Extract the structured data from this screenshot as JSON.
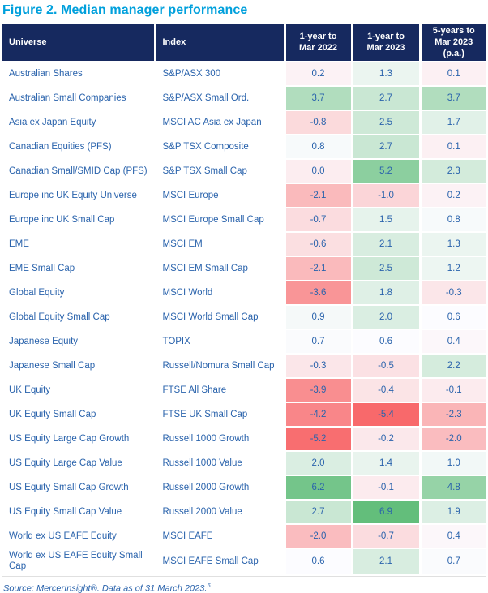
{
  "title": "Figure 2. Median manager performance",
  "source_note": {
    "text": "Source: MercerInsight®. Data as of 31 March 2023.",
    "superscript": "6"
  },
  "colors": {
    "title": "#00a0dc",
    "header_bg": "#16295f",
    "header_text": "#ffffff",
    "body_text": "#2a63ac",
    "negative_extreme": "#f8696b",
    "neutral": "#fcfcff",
    "positive_extreme": "#63be7b"
  },
  "chart_data": {
    "type": "table",
    "title": "Figure 2. Median manager performance",
    "columns": [
      "Universe",
      "Index",
      "1-year to\nMar 2022",
      "1-year to\nMar 2023",
      "5-years to\nMar 2023\n(p.a.)"
    ],
    "value_columns": [
      "1-year to Mar 2022",
      "1-year to Mar 2023",
      "5-years to Mar 2023 (p.a.)"
    ],
    "color_scale": {
      "min": {
        "value": -5.4,
        "color": "#f8696b"
      },
      "mid": {
        "value": 0.6,
        "color": "#fcfcff"
      },
      "max": {
        "value": 6.9,
        "color": "#63be7b"
      }
    },
    "rows": [
      {
        "universe": "Australian Shares",
        "index": "S&P/ASX 300",
        "values": [
          "0.2",
          "1.3",
          "0.1"
        ]
      },
      {
        "universe": "Australian Small Companies",
        "index": "S&P/ASX Small Ord.",
        "values": [
          "3.7",
          "2.7",
          "3.7"
        ]
      },
      {
        "universe": "Asia ex Japan Equity",
        "index": "MSCI AC Asia ex Japan",
        "values": [
          "-0.8",
          "2.5",
          "1.7"
        ]
      },
      {
        "universe": "Canadian Equities (PFS)",
        "index": "S&P TSX Composite",
        "values": [
          "0.8",
          "2.7",
          "0.1"
        ]
      },
      {
        "universe": "Canadian Small/SMID Cap (PFS)",
        "index": "S&P TSX Small Cap",
        "values": [
          "0.0",
          "5.2",
          "2.3"
        ]
      },
      {
        "universe": "Europe inc UK Equity Universe",
        "index": "MSCI Europe",
        "values": [
          "-2.1",
          "-1.0",
          "0.2"
        ]
      },
      {
        "universe": "Europe inc UK Small Cap",
        "index": "MSCI Europe Small Cap",
        "values": [
          "-0.7",
          "1.5",
          "0.8"
        ]
      },
      {
        "universe": "EME",
        "index": "MSCI EM",
        "values": [
          "-0.6",
          "2.1",
          "1.3"
        ]
      },
      {
        "universe": "EME Small Cap",
        "index": "MSCI EM Small Cap",
        "values": [
          "-2.1",
          "2.5",
          "1.2"
        ]
      },
      {
        "universe": "Global Equity",
        "index": "MSCI World",
        "values": [
          "-3.6",
          "1.8",
          "-0.3"
        ]
      },
      {
        "universe": "Global Equity Small Cap",
        "index": "MSCI World Small Cap",
        "values": [
          "0.9",
          "2.0",
          "0.6"
        ]
      },
      {
        "universe": "Japanese Equity",
        "index": "TOPIX",
        "values": [
          "0.7",
          "0.6",
          "0.4"
        ]
      },
      {
        "universe": "Japanese Small Cap",
        "index": "Russell/Nomura Small Cap",
        "values": [
          "-0.3",
          "-0.5",
          "2.2"
        ]
      },
      {
        "universe": "UK Equity",
        "index": "FTSE All Share",
        "values": [
          "-3.9",
          "-0.4",
          "-0.1"
        ]
      },
      {
        "universe": "UK Equity Small Cap",
        "index": "FTSE UK Small Cap",
        "values": [
          "-4.2",
          "-5.4",
          "-2.3"
        ]
      },
      {
        "universe": "US Equity Large Cap Growth",
        "index": "Russell 1000 Growth",
        "values": [
          "-5.2",
          "-0.2",
          "-2.0"
        ]
      },
      {
        "universe": "US Equity Large Cap Value",
        "index": "Russell 1000 Value",
        "values": [
          "2.0",
          "1.4",
          "1.0"
        ]
      },
      {
        "universe": "US Equity Small Cap Growth",
        "index": "Russell 2000 Growth",
        "values": [
          "6.2",
          "-0.1",
          "4.8"
        ]
      },
      {
        "universe": "US Equity Small Cap Value",
        "index": "Russell 2000 Value",
        "values": [
          "2.7",
          "6.9",
          "1.9"
        ]
      },
      {
        "universe": "World ex US EAFE Equity",
        "index": "MSCI EAFE",
        "values": [
          "-2.0",
          "-0.7",
          "0.4"
        ]
      },
      {
        "universe": "World ex US EAFE Equity Small Cap",
        "index": "MSCI EAFE Small Cap",
        "values": [
          "0.6",
          "2.1",
          "0.7"
        ]
      }
    ]
  }
}
